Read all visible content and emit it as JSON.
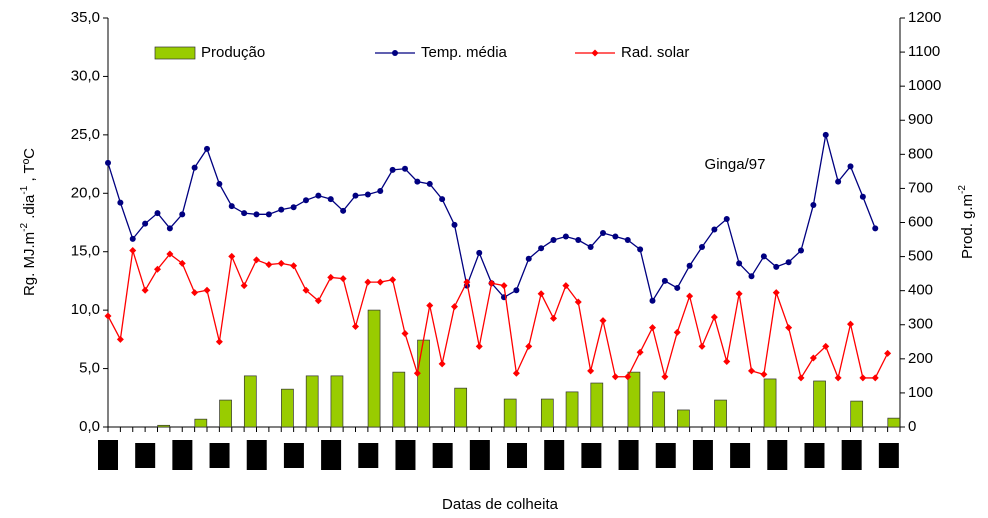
{
  "chart_data": {
    "type": "bar-line",
    "categories": [
      null,
      null,
      null,
      null,
      null,
      null,
      null,
      null,
      null,
      null,
      null,
      null,
      null,
      null,
      null,
      null,
      null,
      null,
      null,
      null,
      null,
      null,
      null,
      null,
      null,
      null,
      null,
      null,
      null,
      null,
      null,
      null,
      null,
      null,
      null,
      null,
      null,
      null,
      null,
      null,
      null,
      null,
      null,
      null,
      null,
      null,
      null,
      null,
      null,
      null,
      null,
      null,
      null,
      null,
      null,
      null,
      null,
      null,
      null,
      null,
      null,
      null,
      null,
      null
    ],
    "y_label": [
      "Rg. MJ.m",
      "-2",
      " .dia",
      "-1",
      " , TºC"
    ],
    "y2_label": [
      "Prod. g.m",
      "-2"
    ],
    "x_label": "Datas de colheita",
    "annotation": "Ginga/97",
    "ylim": [
      0,
      35
    ],
    "yticks": [
      {
        "value": 0,
        "label": "0,0"
      },
      {
        "value": 5,
        "label": "5,0"
      },
      {
        "value": 10,
        "label": "10,0"
      },
      {
        "value": 15,
        "label": "15,0"
      },
      {
        "value": 20,
        "label": "20,0"
      },
      {
        "value": 25,
        "label": "25,0"
      },
      {
        "value": 30,
        "label": "30,0"
      },
      {
        "value": 35,
        "label": "35,0"
      }
    ],
    "y2lim": [
      0,
      1200
    ],
    "y2ticks": [
      0,
      100,
      200,
      300,
      400,
      500,
      600,
      700,
      800,
      900,
      1000,
      1100,
      1200
    ],
    "grid": false,
    "legend": "top",
    "series": [
      {
        "name": "Produção",
        "type": "bar",
        "axis": "y2",
        "color": "#99cc00",
        "values": [
          null,
          null,
          null,
          null,
          5,
          null,
          null,
          23,
          null,
          79,
          null,
          150,
          null,
          null,
          111,
          null,
          150,
          null,
          150,
          null,
          null,
          343,
          null,
          161,
          null,
          255,
          null,
          null,
          114,
          null,
          null,
          null,
          82,
          null,
          null,
          82,
          null,
          103,
          null,
          129,
          null,
          null,
          161,
          null,
          103,
          null,
          50,
          null,
          null,
          79,
          null,
          null,
          null,
          141,
          null,
          null,
          null,
          135,
          null,
          null,
          76,
          null,
          null,
          26
        ]
      },
      {
        "name": "Temp. média",
        "type": "line",
        "marker": "circle",
        "color": "#000080",
        "values": [
          22.6,
          19.2,
          16.1,
          17.4,
          18.3,
          17,
          18.2,
          22.2,
          23.8,
          20.8,
          18.9,
          18.3,
          18.2,
          18.2,
          18.6,
          18.8,
          19.4,
          19.8,
          19.5,
          18.5,
          19.8,
          19.9,
          20.2,
          22,
          22.1,
          21,
          20.8,
          19.5,
          17.3,
          12.1,
          14.9,
          12.3,
          11.1,
          11.7,
          14.4,
          15.3,
          16,
          16.3,
          16,
          15.4,
          16.6,
          16.3,
          16,
          15.2,
          10.8,
          12.5,
          11.9,
          13.8,
          15.4,
          16.9,
          17.8,
          14,
          12.9,
          14.6,
          13.7,
          14.1,
          15.1,
          19,
          25,
          21,
          22.3,
          19.7,
          17,
          null
        ]
      },
      {
        "name": "Rad. solar",
        "type": "line",
        "marker": "diamond",
        "color": "#ff0000",
        "values": [
          9.5,
          7.5,
          15.1,
          11.7,
          13.5,
          14.8,
          14,
          11.5,
          11.7,
          7.3,
          14.6,
          12.1,
          14.3,
          13.9,
          14,
          13.8,
          11.7,
          10.8,
          12.8,
          12.7,
          8.6,
          12.4,
          12.4,
          12.6,
          8,
          4.6,
          10.4,
          5.4,
          10.3,
          12.4,
          6.9,
          12.3,
          12.1,
          4.6,
          6.9,
          11.4,
          9.3,
          12.1,
          10.7,
          4.8,
          9.1,
          4.3,
          4.3,
          6.4,
          8.5,
          4.3,
          8.1,
          11.2,
          6.9,
          9.4,
          5.6,
          11.4,
          4.8,
          4.5,
          11.5,
          8.5,
          4.2,
          5.9,
          6.9,
          4.2,
          8.8,
          4.2,
          4.2,
          6.3
        ]
      }
    ]
  }
}
